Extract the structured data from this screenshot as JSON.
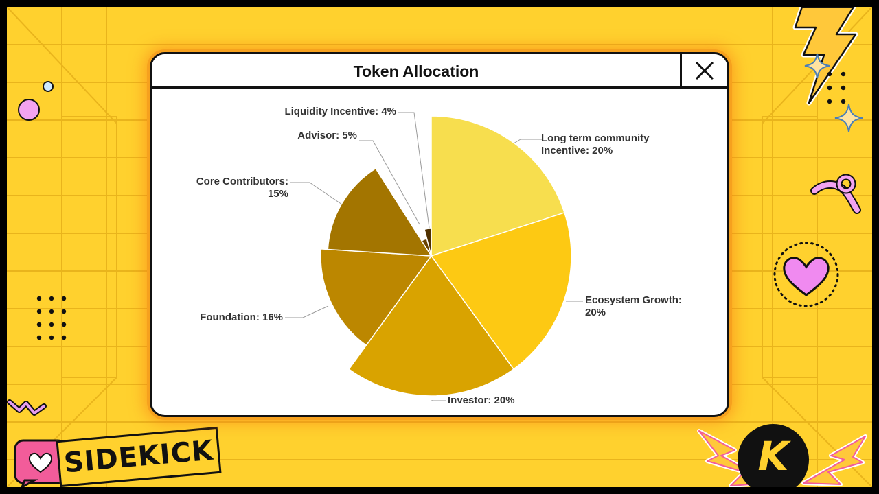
{
  "window": {
    "title": "Token Allocation"
  },
  "brand": {
    "name": "SIDEKICK",
    "badge_letter": "K"
  },
  "colors": {
    "background": "#FFD12E",
    "window_border": "#111111",
    "glow": "#F6A11E"
  },
  "icons": [
    "close-icon",
    "lightning-bolt-icon",
    "sparkle-icon",
    "heart-icon",
    "ribbon-icon",
    "chat-heart-icon",
    "dot-grid-icon"
  ],
  "chart_data": {
    "type": "pie",
    "title": "",
    "slices": [
      {
        "label_lines": [
          "Long term community",
          "Incentive: 20%"
        ],
        "name": "Long term community Incentive",
        "value": 20,
        "color": "#F7DE4E"
      },
      {
        "label_lines": [
          "Ecosystem Growth:",
          "20%"
        ],
        "name": "Ecosystem Growth",
        "value": 20,
        "color": "#FDC913"
      },
      {
        "label_lines": [
          "Investor: 20%"
        ],
        "name": "Investor",
        "value": 20,
        "color": "#D9A300"
      },
      {
        "label_lines": [
          "Foundation: 16%"
        ],
        "name": "Foundation",
        "value": 16,
        "color": "#BC8700"
      },
      {
        "label_lines": [
          "Core Contributors:",
          "15%"
        ],
        "name": "Core Contributors",
        "value": 15,
        "color": "#A37500"
      },
      {
        "label_lines": [
          "Advisor: 5%"
        ],
        "name": "Advisor",
        "value": 5,
        "color": "#6A4300"
      },
      {
        "label_lines": [
          "Liquidity Incentive: 4%"
        ],
        "name": "Liquidity Incentive",
        "value": 4,
        "color": "#4F3000"
      }
    ]
  }
}
